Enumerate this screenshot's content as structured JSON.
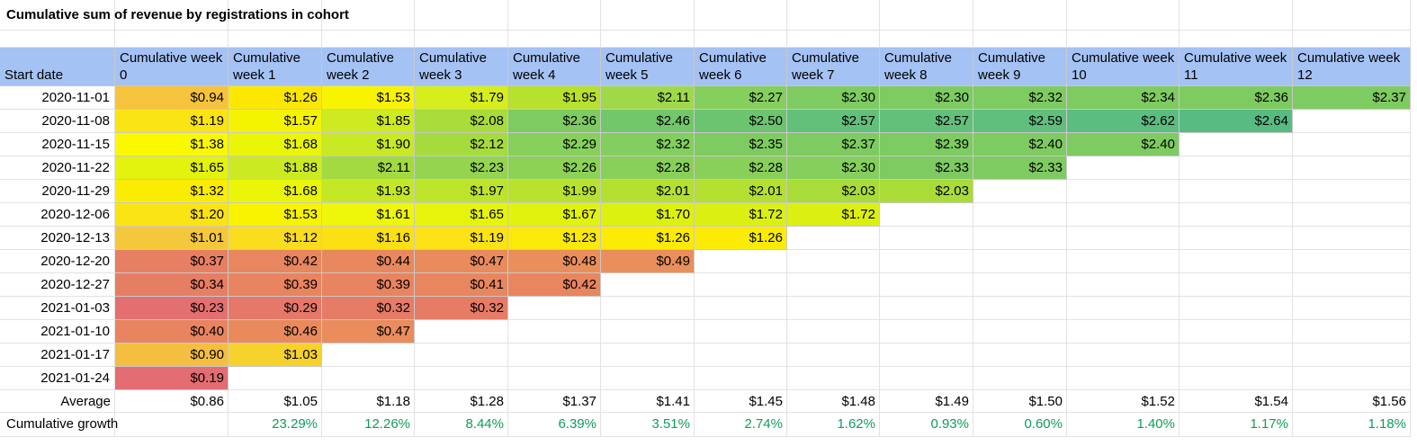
{
  "sheet": {
    "title": "Cumulative sum of revenue by registrations in cohort",
    "start_date_header": "Start date",
    "week_headers": [
      "Cumulative week 0",
      "Cumulative week 1",
      "Cumulative week 2",
      "Cumulative week 3",
      "Cumulative week 4",
      "Cumulative week 5",
      "Cumulative week 6",
      "Cumulative week 7",
      "Cumulative week 8",
      "Cumulative week 9",
      "Cumulative week 10",
      "Cumulative week 11",
      "Cumulative week 12"
    ],
    "rows": [
      {
        "date": "2020-11-01",
        "values": [
          "$0.94",
          "$1.26",
          "$1.53",
          "$1.79",
          "$1.95",
          "$2.11",
          "$2.27",
          "$2.30",
          "$2.30",
          "$2.32",
          "$2.34",
          "$2.36",
          "$2.37"
        ],
        "colors": [
          "#f6c33c",
          "#fce700",
          "#f8f400",
          "#d6ee1b",
          "#b7e12c",
          "#9fd94a",
          "#85cf5c",
          "#7ecb61",
          "#7ecb61",
          "#7ecb61",
          "#7ecb61",
          "#7ecb61",
          "#7ecb61"
        ]
      },
      {
        "date": "2020-11-08",
        "values": [
          "$1.19",
          "$1.57",
          "$1.85",
          "$2.08",
          "$2.36",
          "$2.46",
          "$2.50",
          "$2.57",
          "$2.57",
          "$2.59",
          "$2.62",
          "$2.64"
        ],
        "colors": [
          "#fbe413",
          "#f4f300",
          "#cdeb20",
          "#a8dc3b",
          "#7ecb61",
          "#73c76b",
          "#6cc46e",
          "#63c07b",
          "#63c07b",
          "#60bf7c",
          "#5bbd80",
          "#58bc82"
        ]
      },
      {
        "date": "2020-11-15",
        "values": [
          "$1.38",
          "$1.68",
          "$1.90",
          "$2.12",
          "$2.29",
          "$2.32",
          "$2.35",
          "$2.37",
          "$2.39",
          "$2.40",
          "$2.40"
        ],
        "colors": [
          "#fbf900",
          "#eaf508",
          "#c8e924",
          "#a5db3d",
          "#86d05b",
          "#82ce5e",
          "#7ecb61",
          "#7ecb61",
          "#7ecb61",
          "#7ecb61",
          "#7ecb61"
        ]
      },
      {
        "date": "2020-11-22",
        "values": [
          "$1.65",
          "$1.88",
          "$2.11",
          "$2.23",
          "$2.26",
          "$2.28",
          "$2.28",
          "$2.30",
          "$2.33",
          "$2.33"
        ],
        "colors": [
          "#e3f30d",
          "#cbea22",
          "#a2da3f",
          "#94d44f",
          "#8dd255",
          "#89d058",
          "#89d058",
          "#85cf5c",
          "#7ecb61",
          "#7ecb61"
        ]
      },
      {
        "date": "2020-11-29",
        "values": [
          "$1.32",
          "$1.68",
          "$1.93",
          "$1.97",
          "$1.99",
          "$2.01",
          "$2.01",
          "$2.03",
          "$2.03"
        ],
        "colors": [
          "#fbec04",
          "#eaf508",
          "#c5e826",
          "#bde42b",
          "#b9e22e",
          "#b4e031",
          "#b4e031",
          "#a9dc39",
          "#a9dc39"
        ]
      },
      {
        "date": "2020-12-06",
        "values": [
          "$1.20",
          "$1.53",
          "$1.61",
          "$1.65",
          "$1.67",
          "$1.70",
          "$1.72",
          "$1.72"
        ],
        "colors": [
          "#fbe414",
          "#f8f400",
          "#eef60a",
          "#e6f40c",
          "#e1f20e",
          "#ddf111",
          "#dbf012",
          "#dbf012"
        ]
      },
      {
        "date": "2020-12-13",
        "values": [
          "$1.01",
          "$1.12",
          "$1.16",
          "$1.19",
          "$1.23",
          "$1.26",
          "$1.26"
        ],
        "colors": [
          "#f5c83b",
          "#f9dd1e",
          "#fbe114",
          "#fbe315",
          "#fbe90a",
          "#fcec05",
          "#fcec05"
        ]
      },
      {
        "date": "2020-12-20",
        "values": [
          "$0.37",
          "$0.42",
          "$0.44",
          "$0.47",
          "$0.48",
          "$0.49"
        ],
        "colors": [
          "#e77f63",
          "#e8865f",
          "#e9885e",
          "#e98b5d",
          "#ea8e5c",
          "#ea8f5b"
        ]
      },
      {
        "date": "2020-12-27",
        "values": [
          "$0.34",
          "$0.39",
          "$0.39",
          "$0.41",
          "$0.42"
        ],
        "colors": [
          "#e67e64",
          "#e8845f",
          "#e8845f",
          "#e8865f",
          "#e8865f"
        ]
      },
      {
        "date": "2021-01-03",
        "values": [
          "$0.23",
          "$0.29",
          "$0.32",
          "$0.32"
        ],
        "colors": [
          "#e46f70",
          "#e57868",
          "#e67b66",
          "#e67b66"
        ]
      },
      {
        "date": "2021-01-10",
        "values": [
          "$0.40",
          "$0.46",
          "$0.47"
        ],
        "colors": [
          "#e88460",
          "#e98a5d",
          "#ea8c5c"
        ]
      },
      {
        "date": "2021-01-17",
        "values": [
          "$0.90",
          "$1.03"
        ],
        "colors": [
          "#f4bf40",
          "#f7d22c"
        ]
      },
      {
        "date": "2021-01-24",
        "values": [
          "$0.19"
        ],
        "colors": [
          "#e36d72"
        ]
      }
    ],
    "average_label": "Average",
    "averages": [
      "$0.86",
      "$1.05",
      "$1.18",
      "$1.28",
      "$1.37",
      "$1.41",
      "$1.45",
      "$1.48",
      "$1.49",
      "$1.50",
      "$1.52",
      "$1.54",
      "$1.56"
    ],
    "growth_label": "Cumulative growth",
    "growth": [
      "",
      "23.29%",
      "12.26%",
      "8.44%",
      "6.39%",
      "3.51%",
      "2.74%",
      "1.62%",
      "0.93%",
      "0.60%",
      "1.40%",
      "1.17%",
      "1.18%"
    ],
    "colors": {
      "header_bg": "#a4c2f4",
      "growth_text": "#0f9d58",
      "gridline": "#e2e2e2"
    }
  }
}
